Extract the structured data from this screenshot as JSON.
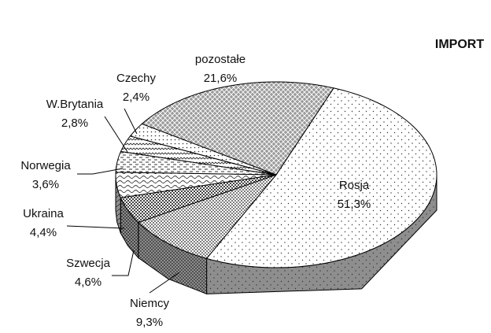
{
  "chart_data": {
    "type": "pie3d",
    "title": "IMPORT",
    "categories": [
      "Rosja",
      "Niemcy",
      "Szwecja",
      "Ukraina",
      "Norwegia",
      "W.Brytania",
      "Czechy",
      "pozostałe"
    ],
    "values": [
      51.3,
      9.3,
      4.6,
      4.4,
      3.6,
      2.8,
      2.4,
      21.6
    ],
    "value_labels": [
      "51,3%",
      "9,3%",
      "4,6%",
      "4,4%",
      "3,6%",
      "2,8%",
      "2,4%",
      "21,6%"
    ]
  }
}
